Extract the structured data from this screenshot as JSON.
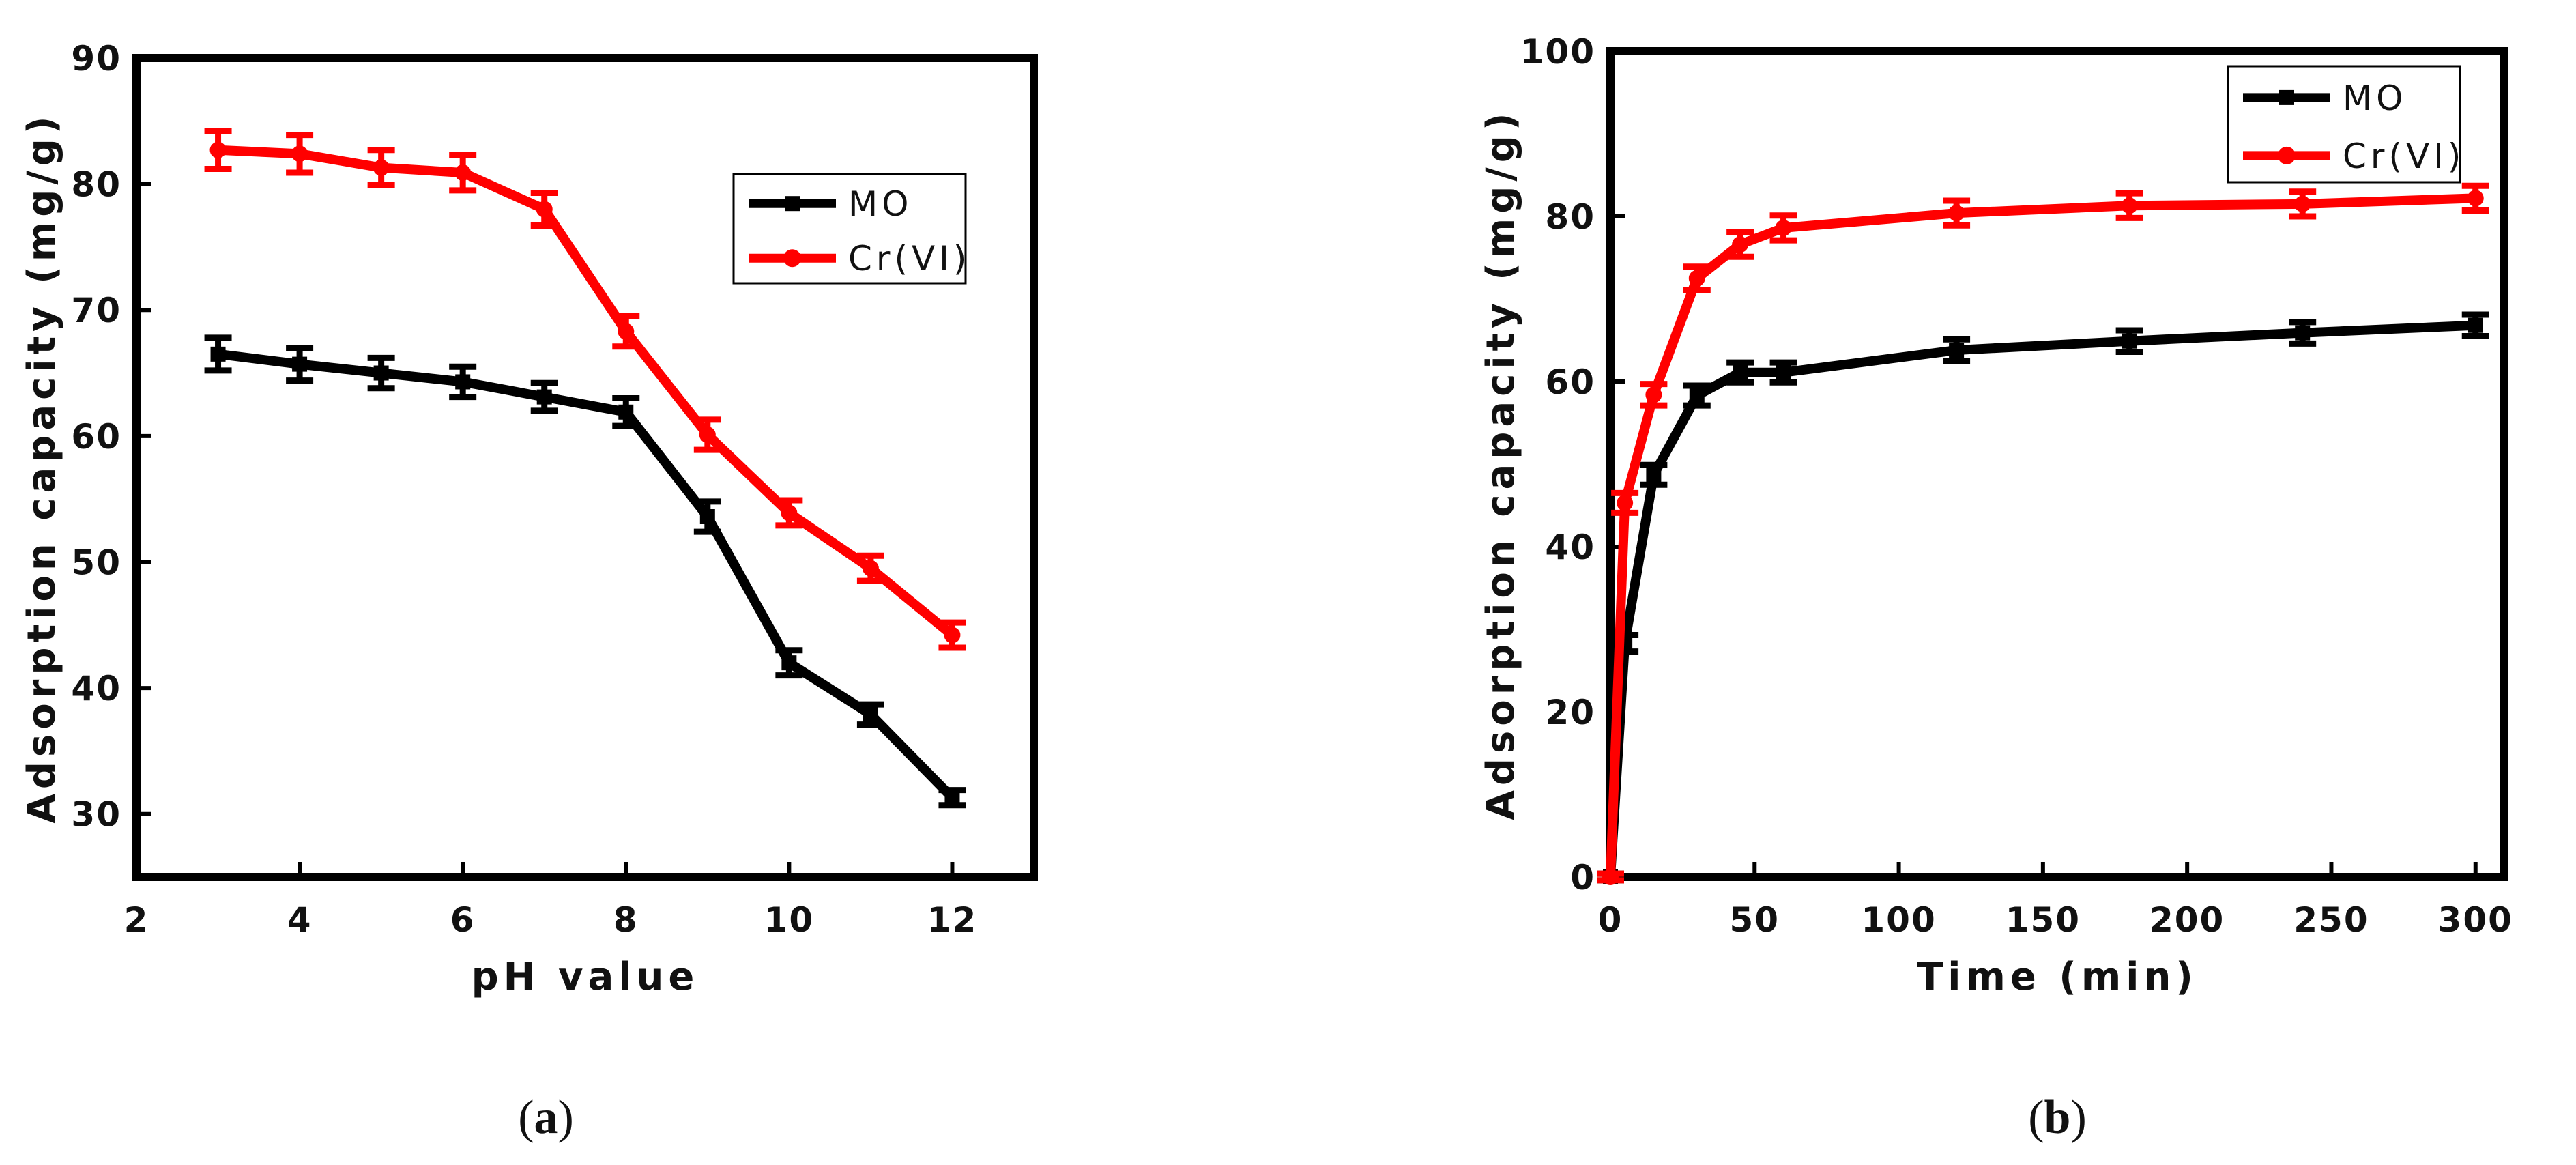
{
  "chart_data": [
    {
      "id": "a",
      "type": "line",
      "caption_letter": "a",
      "xlabel": "pH value",
      "ylabel": "Adsorption capacity (mg/g)",
      "xlim": [
        2,
        13
      ],
      "ylim": [
        25,
        90
      ],
      "xticks": [
        2,
        4,
        6,
        8,
        10,
        12
      ],
      "yticks": [
        30,
        40,
        50,
        60,
        70,
        80,
        90
      ],
      "legend_position": "upper-right",
      "series": [
        {
          "name": "MO",
          "color": "#000000",
          "marker": "square",
          "x": [
            3,
            4,
            5,
            6,
            7,
            8,
            9,
            10,
            11,
            12
          ],
          "values": [
            66.5,
            65.7,
            65.0,
            64.3,
            63.1,
            61.9,
            53.6,
            42.0,
            37.9,
            31.3
          ],
          "errors": [
            1.3,
            1.3,
            1.2,
            1.2,
            1.1,
            1.1,
            1.2,
            1.0,
            0.8,
            0.6
          ]
        },
        {
          "name": "Cr(VI)",
          "color": "#ff0000",
          "marker": "circle",
          "x": [
            3,
            4,
            5,
            6,
            7,
            8,
            9,
            10,
            11,
            12
          ],
          "values": [
            82.7,
            82.4,
            81.3,
            80.9,
            78.0,
            68.3,
            60.1,
            53.9,
            49.5,
            44.2
          ],
          "errors": [
            1.5,
            1.5,
            1.4,
            1.4,
            1.3,
            1.2,
            1.2,
            1.0,
            1.0,
            1.0
          ]
        }
      ]
    },
    {
      "id": "b",
      "type": "line",
      "caption_letter": "b",
      "xlabel": "Time (min)",
      "ylabel": "Adsorption capacity (mg/g)",
      "xlim": [
        0,
        310
      ],
      "ylim": [
        0,
        100
      ],
      "xticks": [
        0,
        50,
        100,
        150,
        200,
        250,
        300
      ],
      "yticks": [
        0,
        20,
        40,
        60,
        80,
        100
      ],
      "legend_position": "upper-right",
      "series": [
        {
          "name": "MO",
          "color": "#000000",
          "marker": "square",
          "x": [
            0,
            5,
            15,
            30,
            45,
            60,
            120,
            180,
            240,
            300
          ],
          "values": [
            0,
            28.3,
            48.7,
            58.3,
            61.1,
            61.1,
            63.8,
            64.9,
            65.9,
            66.8
          ],
          "errors": [
            0.4,
            1.0,
            1.2,
            1.2,
            1.2,
            1.2,
            1.3,
            1.3,
            1.3,
            1.3
          ]
        },
        {
          "name": "Cr(VI)",
          "color": "#ff0000",
          "marker": "circle",
          "x": [
            0,
            5,
            15,
            30,
            45,
            60,
            120,
            180,
            240,
            300
          ],
          "values": [
            0,
            45.3,
            58.4,
            72.5,
            76.6,
            78.6,
            80.4,
            81.3,
            81.5,
            82.2
          ],
          "errors": [
            0.4,
            1.2,
            1.3,
            1.4,
            1.5,
            1.5,
            1.5,
            1.5,
            1.5,
            1.5
          ]
        }
      ]
    }
  ]
}
